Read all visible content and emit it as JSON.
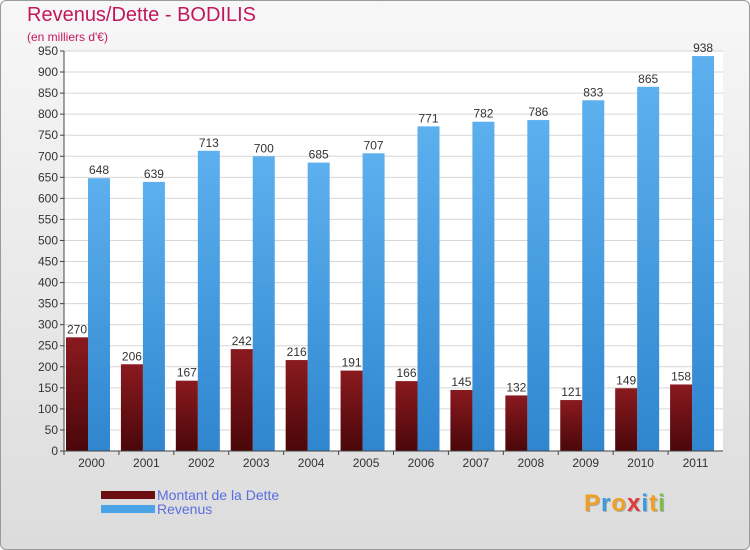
{
  "title": "Revenus/Dette - BODILIS",
  "subtitle": "(en milliers d'€)",
  "colors": {
    "dette": "#6b0f13",
    "revenus": "#4aa3e6",
    "title": "#c2185b",
    "legend_text": "#5b6fe0"
  },
  "logo": {
    "text": "Proxiti",
    "icon": "proxiti-logo"
  },
  "chart_data": {
    "type": "bar",
    "categories": [
      "2000",
      "2001",
      "2002",
      "2003",
      "2004",
      "2005",
      "2006",
      "2007",
      "2008",
      "2009",
      "2010",
      "2011"
    ],
    "series": [
      {
        "name": "Montant de la Dette",
        "values": [
          270,
          206,
          167,
          242,
          216,
          191,
          166,
          145,
          132,
          121,
          149,
          158
        ]
      },
      {
        "name": "Revenus",
        "values": [
          648,
          639,
          713,
          700,
          685,
          707,
          771,
          782,
          786,
          833,
          865,
          938
        ]
      }
    ],
    "ylim": [
      0,
      950
    ],
    "yticks": [
      0,
      50,
      100,
      150,
      200,
      250,
      300,
      350,
      400,
      450,
      500,
      550,
      600,
      650,
      700,
      750,
      800,
      850,
      900,
      950
    ],
    "grid": true,
    "legend": "bottom-left"
  }
}
